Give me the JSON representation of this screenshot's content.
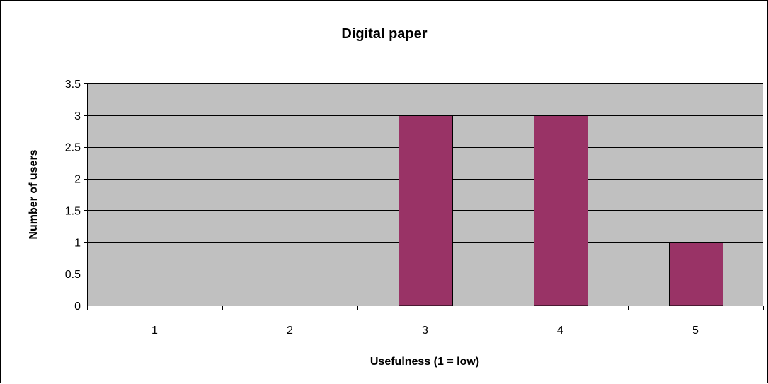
{
  "colors": {
    "plot_background": "#c0c0c0",
    "bar_fill": "#993366",
    "bar_stroke": "#000000",
    "gridline": "#000000",
    "axis": "#000000"
  },
  "chart_data": {
    "type": "bar",
    "title": "Digital paper",
    "xlabel": "Usefulness (1 = low)",
    "ylabel": "Number of users",
    "categories": [
      "1",
      "2",
      "3",
      "4",
      "5"
    ],
    "values": [
      0,
      0,
      3,
      3,
      1
    ],
    "ylim": [
      0,
      3.5
    ],
    "yticks": [
      "0",
      "0.5",
      "1",
      "1.5",
      "2",
      "2.5",
      "3",
      "3.5"
    ],
    "grid": true,
    "legend": "none"
  }
}
